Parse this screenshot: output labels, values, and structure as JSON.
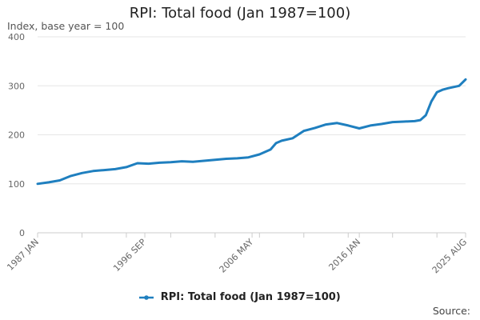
{
  "colors": {
    "series": "#1f7fbf",
    "grid": "#e6e6e6",
    "axis_line": "#cccccc",
    "tick_text": "#666666"
  },
  "chart_data": {
    "type": "line",
    "title": "RPI: Total food (Jan 1987=100)",
    "ylabel": "Index, base year = 100",
    "xlabel": "",
    "ylim": [
      0,
      400
    ],
    "yticks": [
      0,
      100,
      200,
      300,
      400
    ],
    "xlim": [
      "1987-01",
      "2025-08"
    ],
    "xticks": [
      "1987 JAN",
      "1996 SEP",
      "2006 MAY",
      "2016 JAN",
      "2025 AUG"
    ],
    "grid": true,
    "legend_position": "bottom-center",
    "source_label": "Source:",
    "series": [
      {
        "name": "RPI: Total food (Jan 1987=100)",
        "x": [
          "1987-01",
          "1988-01",
          "1989-01",
          "1990-01",
          "1991-01",
          "1992-01",
          "1993-01",
          "1994-01",
          "1995-01",
          "1996-01",
          "1997-01",
          "1998-01",
          "1999-01",
          "2000-01",
          "2001-01",
          "2002-01",
          "2003-01",
          "2004-01",
          "2005-01",
          "2006-01",
          "2007-01",
          "2008-01",
          "2008-07",
          "2009-01",
          "2010-01",
          "2011-01",
          "2012-01",
          "2013-01",
          "2014-01",
          "2015-01",
          "2016-01",
          "2017-01",
          "2018-01",
          "2019-01",
          "2020-01",
          "2021-01",
          "2021-07",
          "2022-01",
          "2022-07",
          "2023-01",
          "2023-07",
          "2024-01",
          "2025-01",
          "2025-08"
        ],
        "values": [
          100,
          103,
          107,
          116,
          122,
          126,
          128,
          130,
          134,
          142,
          141,
          143,
          144,
          146,
          145,
          147,
          149,
          151,
          152,
          154,
          160,
          170,
          183,
          188,
          193,
          208,
          214,
          221,
          224,
          219,
          213,
          219,
          222,
          226,
          227,
          228,
          230,
          240,
          268,
          287,
          292,
          295,
          300,
          313
        ]
      }
    ]
  }
}
